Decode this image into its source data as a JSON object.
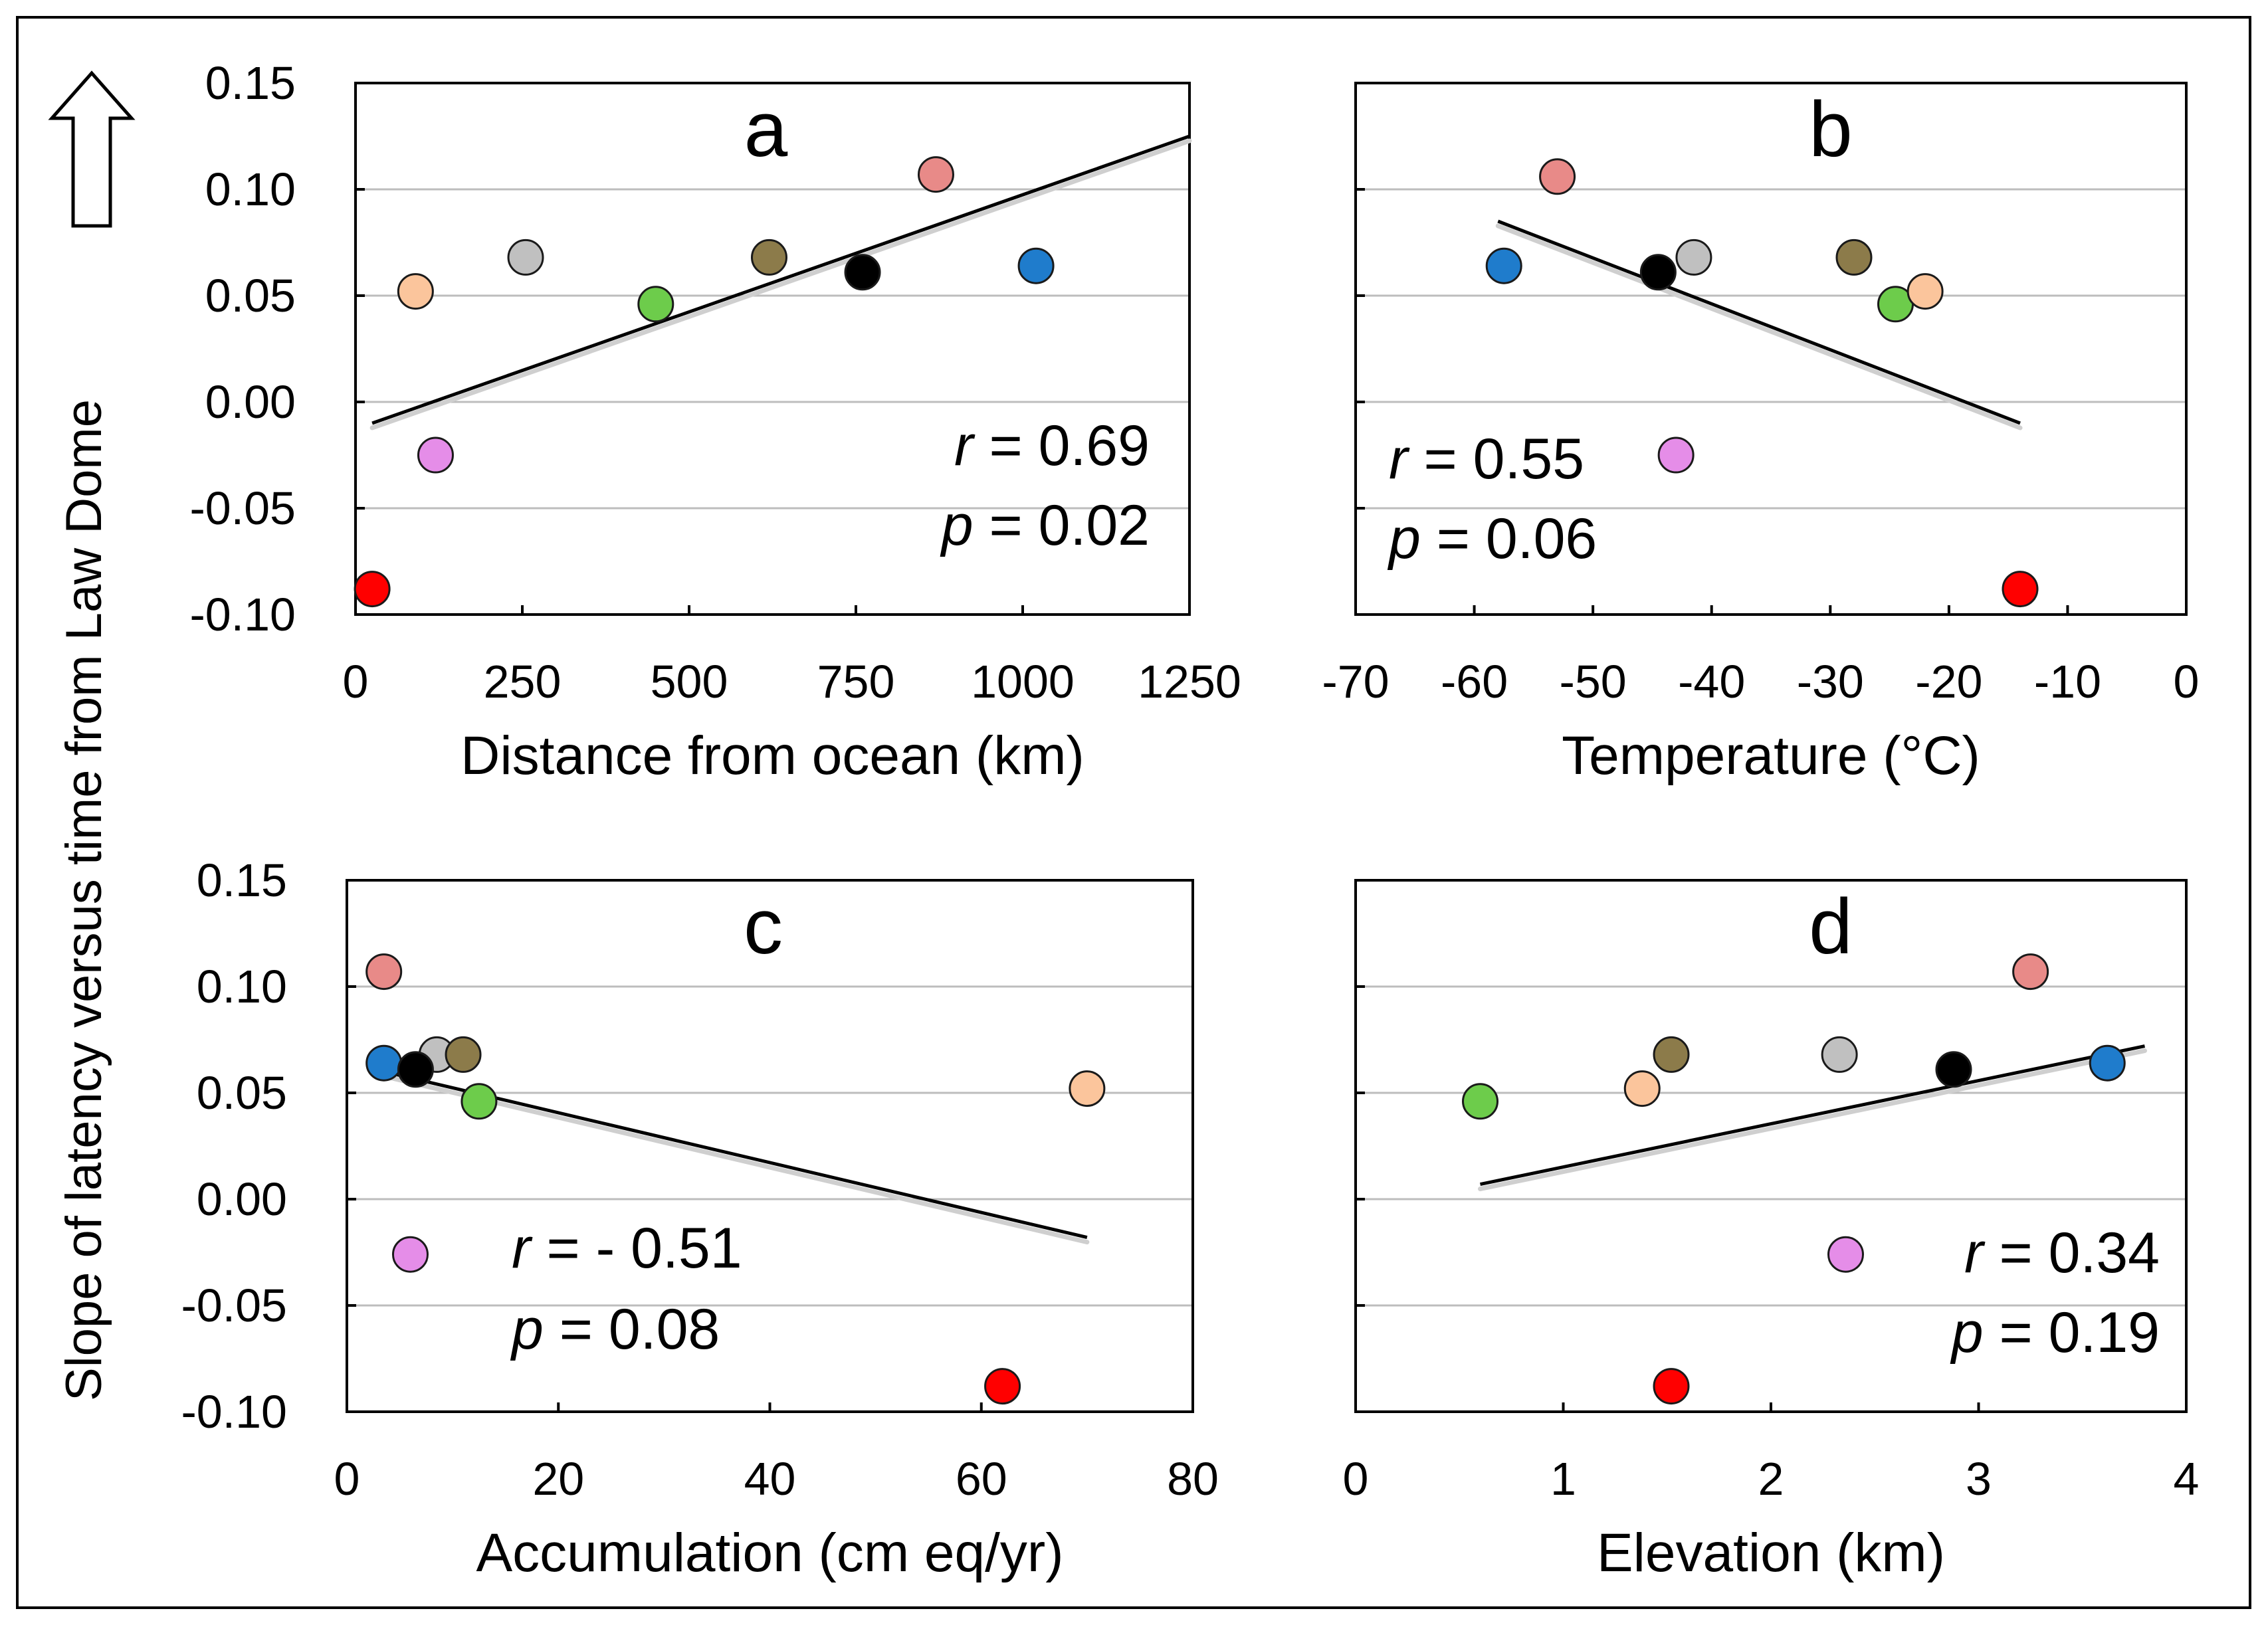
{
  "figure": {
    "y_axis_label": "Slope of latency versus time from Law Dome"
  },
  "chart_data": [
    {
      "id": "a",
      "type": "scatter",
      "panel_letter": "a",
      "xlabel": "Distance from ocean (km)",
      "xlim": [
        0,
        1250
      ],
      "ylim": [
        -0.1,
        0.15
      ],
      "xticks": [
        0,
        250,
        500,
        750,
        1000,
        1250
      ],
      "xtick_labels": [
        "0",
        "250",
        "500",
        "750",
        "1000",
        "1250"
      ],
      "yticks": [
        -0.1,
        -0.05,
        0,
        0.05,
        0.1,
        0.15
      ],
      "ytick_labels": [
        "-0.10",
        "-0.05",
        "0.00",
        "0.05",
        "0.10",
        "0.15"
      ],
      "show_yticks": true,
      "grid": true,
      "points": [
        {
          "x": 25,
          "y": -0.088,
          "color": "#ff0000"
        },
        {
          "x": 90,
          "y": 0.052,
          "color": "#fbc59c"
        },
        {
          "x": 120,
          "y": -0.025,
          "color": "#e58de8"
        },
        {
          "x": 255,
          "y": 0.068,
          "color": "#c0c0c0"
        },
        {
          "x": 450,
          "y": 0.046,
          "color": "#6dcc4b"
        },
        {
          "x": 620,
          "y": 0.068,
          "color": "#8c7b4a"
        },
        {
          "x": 760,
          "y": 0.061,
          "color": "#000000"
        },
        {
          "x": 870,
          "y": 0.107,
          "color": "#e88a88"
        },
        {
          "x": 1020,
          "y": 0.064,
          "color": "#1f7ccc"
        }
      ],
      "trendline": {
        "x": [
          25,
          1250
        ],
        "y": [
          -0.01,
          0.125
        ]
      },
      "r_label": "r",
      "r_value": " =  0.69",
      "p_label": "p",
      "p_value": " = 0.02",
      "stat_anchor": "upper-right-of-lower-half"
    },
    {
      "id": "b",
      "type": "scatter",
      "panel_letter": "b",
      "xlabel": "Temperature (°C)",
      "xlim": [
        -70,
        0
      ],
      "ylim": [
        -0.1,
        0.15
      ],
      "xticks": [
        -70,
        -60,
        -50,
        -40,
        -30,
        -20,
        -10,
        0
      ],
      "xtick_labels": [
        "-70",
        "-60",
        "-50",
        "-40",
        "-30",
        "-20",
        "-10",
        "0"
      ],
      "yticks": [
        -0.1,
        -0.05,
        0,
        0.05,
        0.1,
        0.15
      ],
      "ytick_labels": [
        "",
        "",
        "",
        "",
        "",
        ""
      ],
      "show_yticks": false,
      "grid": true,
      "points": [
        {
          "x": -57.5,
          "y": 0.064,
          "color": "#1f7ccc"
        },
        {
          "x": -53,
          "y": 0.106,
          "color": "#e88a88"
        },
        {
          "x": -44.5,
          "y": 0.061,
          "color": "#000000"
        },
        {
          "x": -43,
          "y": -0.025,
          "color": "#e58de8"
        },
        {
          "x": -41.5,
          "y": 0.068,
          "color": "#c0c0c0"
        },
        {
          "x": -28,
          "y": 0.068,
          "color": "#8c7b4a"
        },
        {
          "x": -24.5,
          "y": 0.046,
          "color": "#6dcc4b"
        },
        {
          "x": -22,
          "y": 0.052,
          "color": "#fbc59c"
        },
        {
          "x": -14,
          "y": -0.088,
          "color": "#ff0000"
        }
      ],
      "trendline": {
        "x": [
          -58,
          -14
        ],
        "y": [
          0.085,
          -0.01
        ]
      },
      "r_label": "r",
      "r_value": " =  0.55",
      "p_label": "p",
      "p_value": " = 0.06"
    },
    {
      "id": "c",
      "type": "scatter",
      "panel_letter": "c",
      "xlabel": "Accumulation (cm eq/yr)",
      "xlim": [
        0,
        80
      ],
      "ylim": [
        -0.1,
        0.15
      ],
      "xticks": [
        0,
        20,
        40,
        60,
        80
      ],
      "xtick_labels": [
        "0",
        "20",
        "40",
        "60",
        "80"
      ],
      "yticks": [
        -0.1,
        -0.05,
        0,
        0.05,
        0.1,
        0.15
      ],
      "ytick_labels": [
        "-0.10",
        "-0.05",
        "0.00",
        "0.05",
        "0.10",
        "0.15"
      ],
      "show_yticks": true,
      "grid": true,
      "points": [
        {
          "x": 3.5,
          "y": 0.107,
          "color": "#e88a88"
        },
        {
          "x": 3.5,
          "y": 0.064,
          "color": "#1f7ccc"
        },
        {
          "x": 8.5,
          "y": 0.068,
          "color": "#c0c0c0"
        },
        {
          "x": 11,
          "y": 0.068,
          "color": "#8c7b4a"
        },
        {
          "x": 6.5,
          "y": 0.061,
          "color": "#000000"
        },
        {
          "x": 12.5,
          "y": 0.046,
          "color": "#6dcc4b"
        },
        {
          "x": 6,
          "y": -0.026,
          "color": "#e58de8"
        },
        {
          "x": 70,
          "y": 0.052,
          "color": "#fbc59c"
        },
        {
          "x": 62,
          "y": -0.088,
          "color": "#ff0000"
        }
      ],
      "trendline": {
        "x": [
          3.5,
          70
        ],
        "y": [
          0.06,
          -0.018
        ]
      },
      "r_label": "r",
      "r_value": " = - 0.51",
      "p_label": "p",
      "p_value": "  = 0.08"
    },
    {
      "id": "d",
      "type": "scatter",
      "panel_letter": "d",
      "xlabel": "Elevation (km)",
      "xlim": [
        0,
        4
      ],
      "ylim": [
        -0.1,
        0.15
      ],
      "xticks": [
        0,
        1,
        2,
        3,
        4
      ],
      "xtick_labels": [
        "0",
        "1",
        "2",
        "3",
        "4"
      ],
      "yticks": [
        -0.1,
        -0.05,
        0,
        0.05,
        0.1,
        0.15
      ],
      "ytick_labels": [
        "",
        "",
        "",
        "",
        "",
        ""
      ],
      "show_yticks": false,
      "grid": true,
      "points": [
        {
          "x": 0.6,
          "y": 0.046,
          "color": "#6dcc4b"
        },
        {
          "x": 1.38,
          "y": 0.052,
          "color": "#fbc59c"
        },
        {
          "x": 1.52,
          "y": 0.068,
          "color": "#8c7b4a"
        },
        {
          "x": 1.52,
          "y": -0.088,
          "color": "#ff0000"
        },
        {
          "x": 2.33,
          "y": 0.068,
          "color": "#c0c0c0"
        },
        {
          "x": 2.36,
          "y": -0.026,
          "color": "#e58de8"
        },
        {
          "x": 2.88,
          "y": 0.061,
          "color": "#000000"
        },
        {
          "x": 3.25,
          "y": 0.107,
          "color": "#e88a88"
        },
        {
          "x": 3.62,
          "y": 0.064,
          "color": "#1f7ccc"
        }
      ],
      "trendline": {
        "x": [
          0.6,
          3.8
        ],
        "y": [
          0.007,
          0.072
        ]
      },
      "r_label": "r",
      "r_value": " =  0.34",
      "p_label": "p",
      "p_value": "  = 0.19"
    }
  ]
}
